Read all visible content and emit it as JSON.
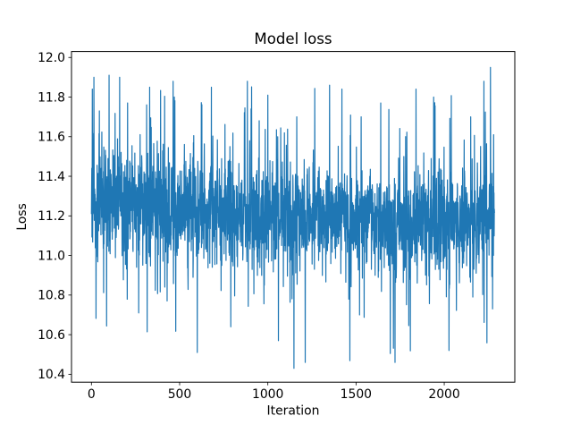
{
  "chart_data": {
    "type": "line",
    "title": "Model loss",
    "xlabel": "Iteration",
    "ylabel": "Loss",
    "grid": false,
    "legend": null,
    "background_color": "#ffffff",
    "line_color": "#1f77b4",
    "spine_color": "#000000",
    "xlim": [
      -113,
      2400
    ],
    "ylim": [
      10.36,
      12.03
    ],
    "x_ticks": [
      {
        "value": 0,
        "label": "0"
      },
      {
        "value": 500,
        "label": "500"
      },
      {
        "value": 1000,
        "label": "1000"
      },
      {
        "value": 1500,
        "label": "1500"
      },
      {
        "value": 2000,
        "label": "2000"
      }
    ],
    "y_ticks": [
      {
        "value": 10.4,
        "label": "10.4"
      },
      {
        "value": 10.6,
        "label": "10.6"
      },
      {
        "value": 10.8,
        "label": "10.8"
      },
      {
        "value": 11.0,
        "label": "11.0"
      },
      {
        "value": 11.2,
        "label": "11.2"
      },
      {
        "value": 11.4,
        "label": "11.4"
      },
      {
        "value": 11.6,
        "label": "11.6"
      },
      {
        "value": 11.8,
        "label": "11.8"
      },
      {
        "value": 12.0,
        "label": "12.0"
      }
    ],
    "series": {
      "name": "loss",
      "x_start": 0,
      "x_end": 2285,
      "n_points": 2286,
      "observed_min": 10.43,
      "observed_max": 11.95,
      "approx_mean": 11.2,
      "generator": {
        "seed": 20,
        "baseline_start": 11.28,
        "baseline_end": 11.18,
        "mid_sag": 0.04,
        "noise_std": 0.125,
        "up_spike_prob": 0.05,
        "up_spike_base": 0.1,
        "up_spike_max": 0.45,
        "down_spike_prob": 0.045,
        "down_spike_base": 0.1,
        "down_spike_max": 0.5,
        "clamp_min": 10.46,
        "clamp_max": 11.88
      },
      "notable_points": [
        [
          5,
          11.84
        ],
        [
          14,
          11.9
        ],
        [
          45,
          11.73
        ],
        [
          100,
          11.91
        ],
        [
          160,
          11.9
        ],
        [
          205,
          11.77
        ],
        [
          268,
          10.71
        ],
        [
          330,
          11.85
        ],
        [
          470,
          11.8
        ],
        [
          600,
          10.51
        ],
        [
          680,
          11.85
        ],
        [
          790,
          10.64
        ],
        [
          905,
          11.74
        ],
        [
          1000,
          11.81
        ],
        [
          1060,
          10.57
        ],
        [
          1148,
          10.43
        ],
        [
          1350,
          11.86
        ],
        [
          1420,
          11.84
        ],
        [
          1520,
          10.7
        ],
        [
          1640,
          11.77
        ],
        [
          1721,
          10.46
        ],
        [
          1840,
          11.84
        ],
        [
          1940,
          11.8
        ],
        [
          2027,
          10.52
        ],
        [
          2150,
          11.7
        ],
        [
          2262,
          11.95
        ],
        [
          2280,
          11.61
        ]
      ]
    }
  }
}
